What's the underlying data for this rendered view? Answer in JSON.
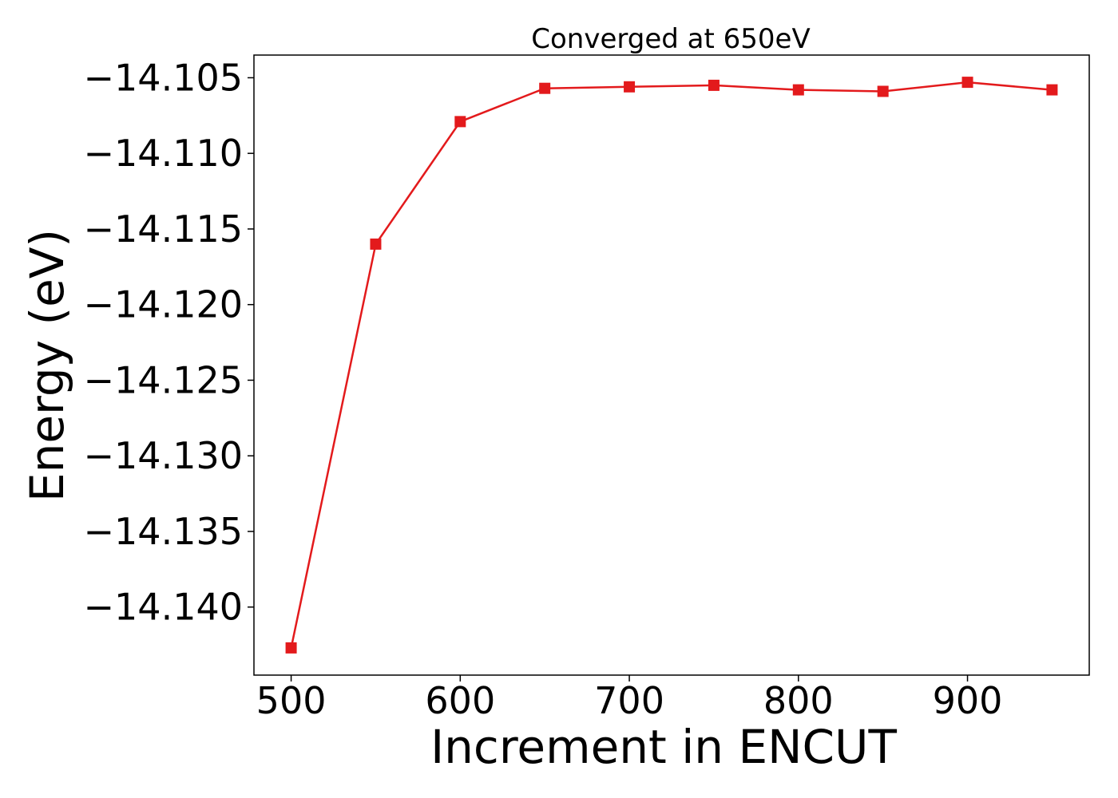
{
  "chart_data": {
    "type": "line",
    "title": "Converged at 650eV",
    "xlabel": "Increment in ENCUT",
    "ylabel": "Energy (eV)",
    "xlim": [
      478,
      972
    ],
    "ylim": [
      -14.1445,
      -14.1035
    ],
    "xticks": [
      500,
      600,
      700,
      800,
      900
    ],
    "yticks": [
      -14.14,
      -14.135,
      -14.13,
      -14.125,
      -14.12,
      -14.115,
      -14.11,
      -14.105
    ],
    "xtick_labels": [
      "500",
      "600",
      "700",
      "800",
      "900"
    ],
    "ytick_labels": [
      "−14.140",
      "−14.135",
      "−14.130",
      "−14.125",
      "−14.120",
      "−14.115",
      "−14.110",
      "−14.105"
    ],
    "grid": false,
    "series": [
      {
        "color": "#e31a1c",
        "marker": "square",
        "x": [
          500,
          550,
          600,
          650,
          700,
          750,
          800,
          850,
          900,
          950
        ],
        "y": [
          -14.1427,
          -14.116,
          -14.1079,
          -14.1057,
          -14.1056,
          -14.1055,
          -14.1058,
          -14.1059,
          -14.1053,
          -14.1058
        ]
      }
    ]
  }
}
